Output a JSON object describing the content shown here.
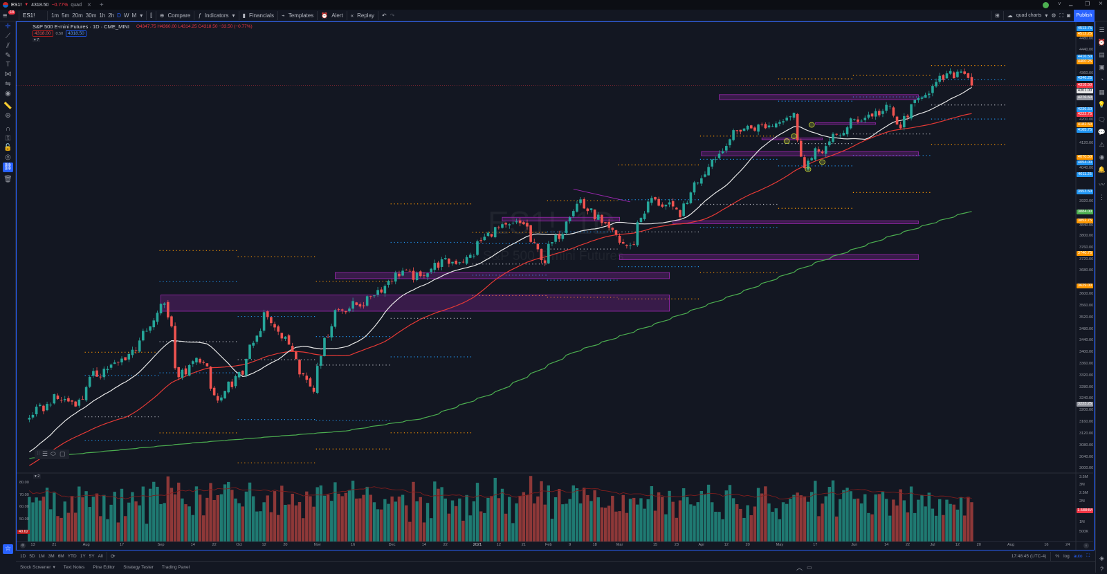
{
  "tab": {
    "symbol": "ES1!",
    "arrow": "▼",
    "price": "4318.50",
    "change": "−0.77%",
    "layout": "quad",
    "close": "×",
    "new": "+"
  },
  "window": {
    "minimize": "▁",
    "restore": "❐",
    "close": "×",
    "chevron": "˅"
  },
  "toolbar": {
    "symbol": "ES1!",
    "intervals": [
      "1m",
      "5m",
      "20m",
      "30m",
      "1h",
      "2h",
      "D",
      "W",
      "M"
    ],
    "active_interval": "D",
    "compare": "Compare",
    "indicators": "Indicators",
    "financials": "Financials",
    "templates": "Templates",
    "alert": "Alert",
    "replay": "Replay",
    "layout_name": "quad charts",
    "publish": "Publish",
    "notifications": "18"
  },
  "legend": {
    "title": "S&P 500 E-mini Futures · 1D · CME_MINI",
    "ohlc": "O4347.75 H4360.00 L4314.25 C4318.50 −33.50 (−0.77%)",
    "sell": "4318.00",
    "spread": "0.50",
    "buy": "4318.50",
    "collapse": "▾ 7"
  },
  "watermark": {
    "symbol": "ES1!, 1D",
    "name": "S&P 500 E-mini Futures"
  },
  "colors": {
    "up": "#26a69a",
    "down": "#ef5350",
    "sma20": "#e8e8e8",
    "sma50": "#e53935",
    "sma200": "#4caf50",
    "zone": "#9c27b0",
    "accent": "#2962ff"
  },
  "price_axis": {
    "ticks": [
      3000,
      3040,
      3080,
      3120,
      3160,
      3200,
      3240,
      3280,
      3320,
      3360,
      3400,
      3440,
      3480,
      3520,
      3560,
      3600,
      3680,
      3720,
      3760,
      3800,
      3840,
      3920,
      4040,
      4120,
      4200,
      4360,
      4440,
      4480
    ],
    "badges": [
      {
        "v": "4513.75",
        "c": "#2196f3"
      },
      {
        "v": "4512.25",
        "c": "#ff9800"
      },
      {
        "v": "4416.50",
        "c": "#2196f3"
      },
      {
        "v": "4400.25",
        "c": "#ff9800"
      },
      {
        "v": "4346.25",
        "c": "#2196f3"
      },
      {
        "v": "4318.50",
        "c": "#f23645"
      },
      {
        "v": "4301.00",
        "c": "#e8e8e8"
      },
      {
        "v": "4276.50",
        "c": "#9598a1"
      },
      {
        "v": "4236.50",
        "c": "#2196f3"
      },
      {
        "v": "4222.75",
        "c": "#f23645"
      },
      {
        "v": "4182.50",
        "c": "#ff9800"
      },
      {
        "v": "4165.75",
        "c": "#2196f3"
      },
      {
        "v": "4070.50",
        "c": "#ff9800"
      },
      {
        "v": "4054.00",
        "c": "#2196f3"
      },
      {
        "v": "4011.25",
        "c": "#2196f3"
      },
      {
        "v": "3953.50",
        "c": "#2196f3"
      },
      {
        "v": "3884.00",
        "c": "#4caf50"
      },
      {
        "v": "3852.75",
        "c": "#ff9800"
      },
      {
        "v": "3740.75",
        "c": "#ff9800"
      },
      {
        "v": "3629.00",
        "c": "#ff9800"
      },
      {
        "v": "3223.25",
        "c": "#9598a1"
      }
    ]
  },
  "volume_pane": {
    "collapse": "▾ 2",
    "left_ticks": [
      "80.00",
      "70.00",
      "60.00",
      "50.00"
    ],
    "left_badge": "40.62",
    "right_ticks": [
      "3.5M",
      "3M",
      "2.5M",
      "2M",
      "1M",
      "500K"
    ],
    "right_badge": "1.5884M"
  },
  "time_axis": [
    [
      "2020-07-13",
      "13"
    ],
    [
      "2020-07-21",
      "21"
    ],
    [
      "2020-08-03",
      "Aug"
    ],
    [
      "2020-08-17",
      "17"
    ],
    [
      "2020-09-01",
      "Sep"
    ],
    [
      "2020-09-14",
      "14"
    ],
    [
      "2020-09-22",
      "22"
    ],
    [
      "2020-10-01",
      "Oct"
    ],
    [
      "2020-10-12",
      "12"
    ],
    [
      "2020-10-20",
      "20"
    ],
    [
      "2020-11-02",
      "Nov"
    ],
    [
      "2020-11-16",
      "16"
    ],
    [
      "2020-12-01",
      "Dec"
    ],
    [
      "2020-12-14",
      "14"
    ],
    [
      "2020-12-22",
      "22"
    ],
    [
      "2021-01-04",
      "2021"
    ],
    [
      "2021-01-12",
      "12"
    ],
    [
      "2021-01-21",
      "21"
    ],
    [
      "2021-02-01",
      "Feb"
    ],
    [
      "2021-02-09",
      "9"
    ],
    [
      "2021-02-18",
      "18"
    ],
    [
      "2021-03-01",
      "Mar"
    ],
    [
      "2021-03-15",
      "15"
    ],
    [
      "2021-03-23",
      "23"
    ],
    [
      "2021-04-01",
      "Apr"
    ],
    [
      "2021-04-12",
      "12"
    ],
    [
      "2021-04-20",
      "20"
    ],
    [
      "2021-05-03",
      "May"
    ],
    [
      "2021-05-17",
      "17"
    ],
    [
      "2021-06-01",
      "Jun"
    ],
    [
      "2021-06-14",
      "14"
    ],
    [
      "2021-06-22",
      "22"
    ],
    [
      "2021-07-01",
      "Jul"
    ],
    [
      "2021-07-12",
      "12"
    ],
    [
      "2021-07-20",
      "20"
    ],
    [
      "2021-08-02",
      "Aug"
    ],
    [
      "2021-08-16",
      "16"
    ],
    [
      "2021-08-24",
      "24"
    ]
  ],
  "bottom_toolbar": {
    "ranges": [
      "1D",
      "5D",
      "1M",
      "3M",
      "6M",
      "YTD",
      "1Y",
      "5Y",
      "All"
    ],
    "clock": "17:48:45 (UTC-4)",
    "percent": "%",
    "log": "log",
    "auto": "auto"
  },
  "panel_tabs": [
    "Stock Screener",
    "Text Notes",
    "Pine Editor",
    "Strategy Tester",
    "Trading Panel"
  ],
  "chart_data": {
    "type": "candlestick",
    "title": "S&P 500 E-mini Futures, 1D, CME_MINI",
    "last_bar": {
      "date": "2021-07-16",
      "open": 4347.75,
      "high": 4360.0,
      "low": 4314.25,
      "close": 4318.5
    },
    "close_anchors": [
      [
        "2020-04-20",
        2800
      ],
      [
        "2020-05-13",
        2820
      ],
      [
        "2020-06-08",
        3220
      ],
      [
        "2020-06-12",
        3020
      ],
      [
        "2020-06-26",
        3000
      ],
      [
        "2020-07-10",
        3175
      ],
      [
        "2020-07-21",
        3240
      ],
      [
        "2020-07-30",
        3230
      ],
      [
        "2020-08-05",
        3320
      ],
      [
        "2020-08-17",
        3375
      ],
      [
        "2020-08-26",
        3470
      ],
      [
        "2020-09-02",
        3570
      ],
      [
        "2020-09-08",
        3320
      ],
      [
        "2020-09-16",
        3380
      ],
      [
        "2020-09-23",
        3230
      ],
      [
        "2020-10-02",
        3330
      ],
      [
        "2020-10-12",
        3530
      ],
      [
        "2020-10-21",
        3430
      ],
      [
        "2020-10-30",
        3270
      ],
      [
        "2020-11-06",
        3500
      ],
      [
        "2020-11-09",
        3545
      ],
      [
        "2020-11-19",
        3570
      ],
      [
        "2020-12-04",
        3680
      ],
      [
        "2020-12-11",
        3655
      ],
      [
        "2020-12-18",
        3705
      ],
      [
        "2020-12-30",
        3720
      ],
      [
        "2021-01-08",
        3815
      ],
      [
        "2021-01-21",
        3845
      ],
      [
        "2021-01-29",
        3715
      ],
      [
        "2021-02-12",
        3925
      ],
      [
        "2021-02-25",
        3810
      ],
      [
        "2021-03-04",
        3760
      ],
      [
        "2021-03-12",
        3930
      ],
      [
        "2021-03-24",
        3880
      ],
      [
        "2021-04-01",
        4010
      ],
      [
        "2021-04-16",
        4170
      ],
      [
        "2021-04-28",
        4180
      ],
      [
        "2021-05-07",
        4225
      ],
      [
        "2021-05-12",
        4050
      ],
      [
        "2021-05-19",
        4100
      ],
      [
        "2021-06-01",
        4200
      ],
      [
        "2021-06-15",
        4240
      ],
      [
        "2021-06-18",
        4160
      ],
      [
        "2021-06-25",
        4270
      ],
      [
        "2021-07-07",
        4350
      ],
      [
        "2021-07-14",
        4372
      ],
      [
        "2021-07-15",
        4350
      ],
      [
        "2021-07-16",
        4318.5
      ]
    ],
    "first_visible": "2020-07-10",
    "sma_periods": [
      20,
      50
    ],
    "sma200_anchors": [
      [
        "2020-07-10",
        3035
      ],
      [
        "2020-09-15",
        3090
      ],
      [
        "2020-11-12",
        3130
      ],
      [
        "2020-12-14",
        3175
      ],
      [
        "2021-01-11",
        3265
      ],
      [
        "2021-02-10",
        3400
      ],
      [
        "2021-03-15",
        3500
      ],
      [
        "2021-04-15",
        3600
      ],
      [
        "2021-05-17",
        3710
      ],
      [
        "2021-06-15",
        3800
      ],
      [
        "2021-07-16",
        3885
      ]
    ],
    "zones": [
      [
        "2020-09-01",
        "2021-03-19",
        3598,
        3542
      ],
      [
        "2020-11-09",
        "2021-03-19",
        3675,
        3654
      ],
      [
        "2021-01-13",
        "2021-03-01",
        3865,
        3852
      ],
      [
        "2021-03-22",
        "2021-06-25",
        3853,
        3843
      ],
      [
        "2021-03-01",
        "2021-06-25",
        3737,
        3719
      ],
      [
        "2021-04-08",
        "2021-06-25",
        4287,
        4270
      ],
      [
        "2021-04-01",
        "2021-06-25",
        4091,
        4076
      ],
      [
        "2021-04-26",
        "2021-05-19",
        4138,
        4132
      ],
      [
        "2021-05-17",
        "2021-06-09",
        4190,
        4185
      ]
    ],
    "markers": [
      [
        "2021-05-05",
        4127
      ],
      [
        "2021-05-07",
        4144
      ],
      [
        "2021-05-13",
        4030
      ],
      [
        "2021-05-14",
        4183
      ],
      [
        "2021-05-19",
        4055
      ]
    ],
    "trendlines": [
      [
        "2021-02-10",
        3962,
        "2021-03-04",
        3918
      ]
    ],
    "pivots": "monthly (P, R1/S1, R2/S2)",
    "price_range": [
      2990,
      4535
    ]
  }
}
